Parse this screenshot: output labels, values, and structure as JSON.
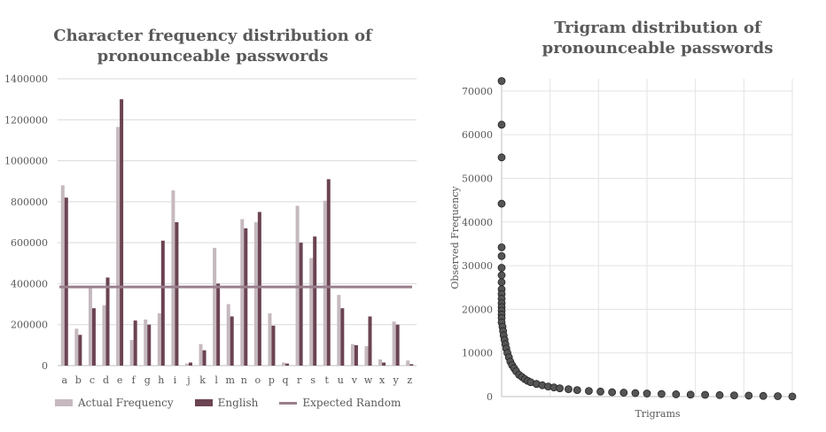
{
  "chart_data": [
    {
      "type": "bar",
      "title": "Character frequency distribution of pronounceable passwords",
      "categories": [
        "a",
        "b",
        "c",
        "d",
        "e",
        "f",
        "g",
        "h",
        "i",
        "j",
        "k",
        "l",
        "m",
        "n",
        "o",
        "p",
        "q",
        "r",
        "s",
        "t",
        "u",
        "v",
        "w",
        "x",
        "y",
        "z"
      ],
      "series": [
        {
          "name": "Actual Frequency",
          "color": "#c5b9bf",
          "values": [
            880000,
            180000,
            385000,
            295000,
            1165000,
            125000,
            225000,
            255000,
            855000,
            10000,
            105000,
            575000,
            300000,
            715000,
            700000,
            255000,
            15000,
            780000,
            525000,
            805000,
            345000,
            105000,
            95000,
            30000,
            215000,
            25000
          ]
        },
        {
          "name": "English",
          "color": "#6b4352",
          "values": [
            820000,
            150000,
            280000,
            430000,
            1300000,
            220000,
            200000,
            610000,
            700000,
            15000,
            75000,
            400000,
            240000,
            670000,
            750000,
            195000,
            10000,
            600000,
            630000,
            910000,
            280000,
            100000,
            240000,
            15000,
            200000,
            7000
          ]
        }
      ],
      "lines": [
        {
          "name": "Expected Random",
          "color": "#9a7f8c",
          "value": 384000
        }
      ],
      "yticks": [
        "0",
        "200000",
        "400000",
        "600000",
        "800000",
        "1000000",
        "1200000",
        "1400000"
      ],
      "ylim": [
        0,
        1400000
      ],
      "grid": true,
      "legend": "bottom"
    },
    {
      "type": "scatter",
      "title": "Trigram distribution of pronounceable passwords",
      "xlabel": "Trigrams",
      "ylabel": "Observed Frequency",
      "yticks": [
        "0",
        "10000",
        "20000",
        "30000",
        "40000",
        "50000",
        "60000",
        "70000"
      ],
      "ylim": [
        0,
        70000
      ],
      "x_range": [
        0,
        1
      ],
      "marker_color": "#555555",
      "x": [
        0,
        0,
        0,
        0,
        0,
        0,
        0,
        0,
        0,
        0,
        0,
        0,
        0,
        0,
        0,
        0,
        0,
        0,
        0.003,
        0.005,
        0.007,
        0.01,
        0.013,
        0.016,
        0.02,
        0.025,
        0.03,
        0.036,
        0.043,
        0.05,
        0.06,
        0.07,
        0.08,
        0.09,
        0.1,
        0.12,
        0.14,
        0.16,
        0.18,
        0.2,
        0.23,
        0.26,
        0.3,
        0.34,
        0.38,
        0.42,
        0.46,
        0.5,
        0.55,
        0.6,
        0.65,
        0.7,
        0.75,
        0.8,
        0.85,
        0.9,
        0.95,
        1
      ],
      "y": [
        72300,
        62300,
        54800,
        44200,
        34200,
        32200,
        29500,
        27800,
        26200,
        24600,
        23500,
        22400,
        21400,
        20500,
        19700,
        18800,
        18000,
        17000,
        16000,
        15000,
        14000,
        13000,
        12000,
        11000,
        10000,
        9000,
        8000,
        7200,
        6500,
        5800,
        5000,
        4500,
        4000,
        3600,
        3300,
        2900,
        2600,
        2300,
        2100,
        1900,
        1700,
        1500,
        1300,
        1150,
        1000,
        900,
        800,
        700,
        600,
        520,
        460,
        400,
        340,
        280,
        220,
        160,
        100,
        30
      ]
    }
  ]
}
